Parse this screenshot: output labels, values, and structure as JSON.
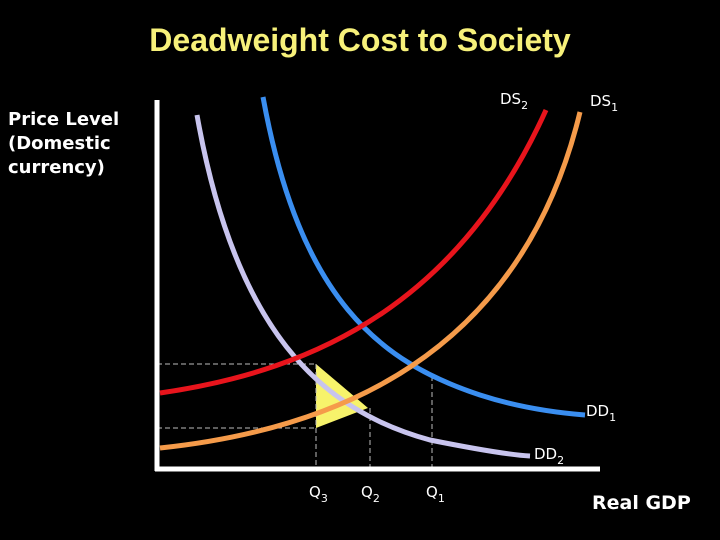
{
  "title": "Deadweight Cost to Society",
  "axes": {
    "y_label_lines": [
      "Price Level",
      "(Domestic",
      "currency)"
    ],
    "x_label": "Real GDP"
  },
  "curves": {
    "ds2": {
      "base": "DS",
      "sub": "2",
      "color": "#e8141c"
    },
    "ds1": {
      "base": "DS",
      "sub": "1",
      "color": "#f59b4a"
    },
    "dd1": {
      "base": "DD",
      "sub": "1",
      "color": "#3a8ef0"
    },
    "dd2": {
      "base": "DD",
      "sub": "2",
      "color": "#c8c4ee"
    }
  },
  "quantities": {
    "q3": {
      "base": "Q",
      "sub": "3"
    },
    "q2": {
      "base": "Q",
      "sub": "2"
    },
    "q1": {
      "base": "Q",
      "sub": "1"
    }
  },
  "colors": {
    "axis": "#ffffff",
    "title": "#f7f17a",
    "deadweight_fill": "#f7f36b"
  }
}
